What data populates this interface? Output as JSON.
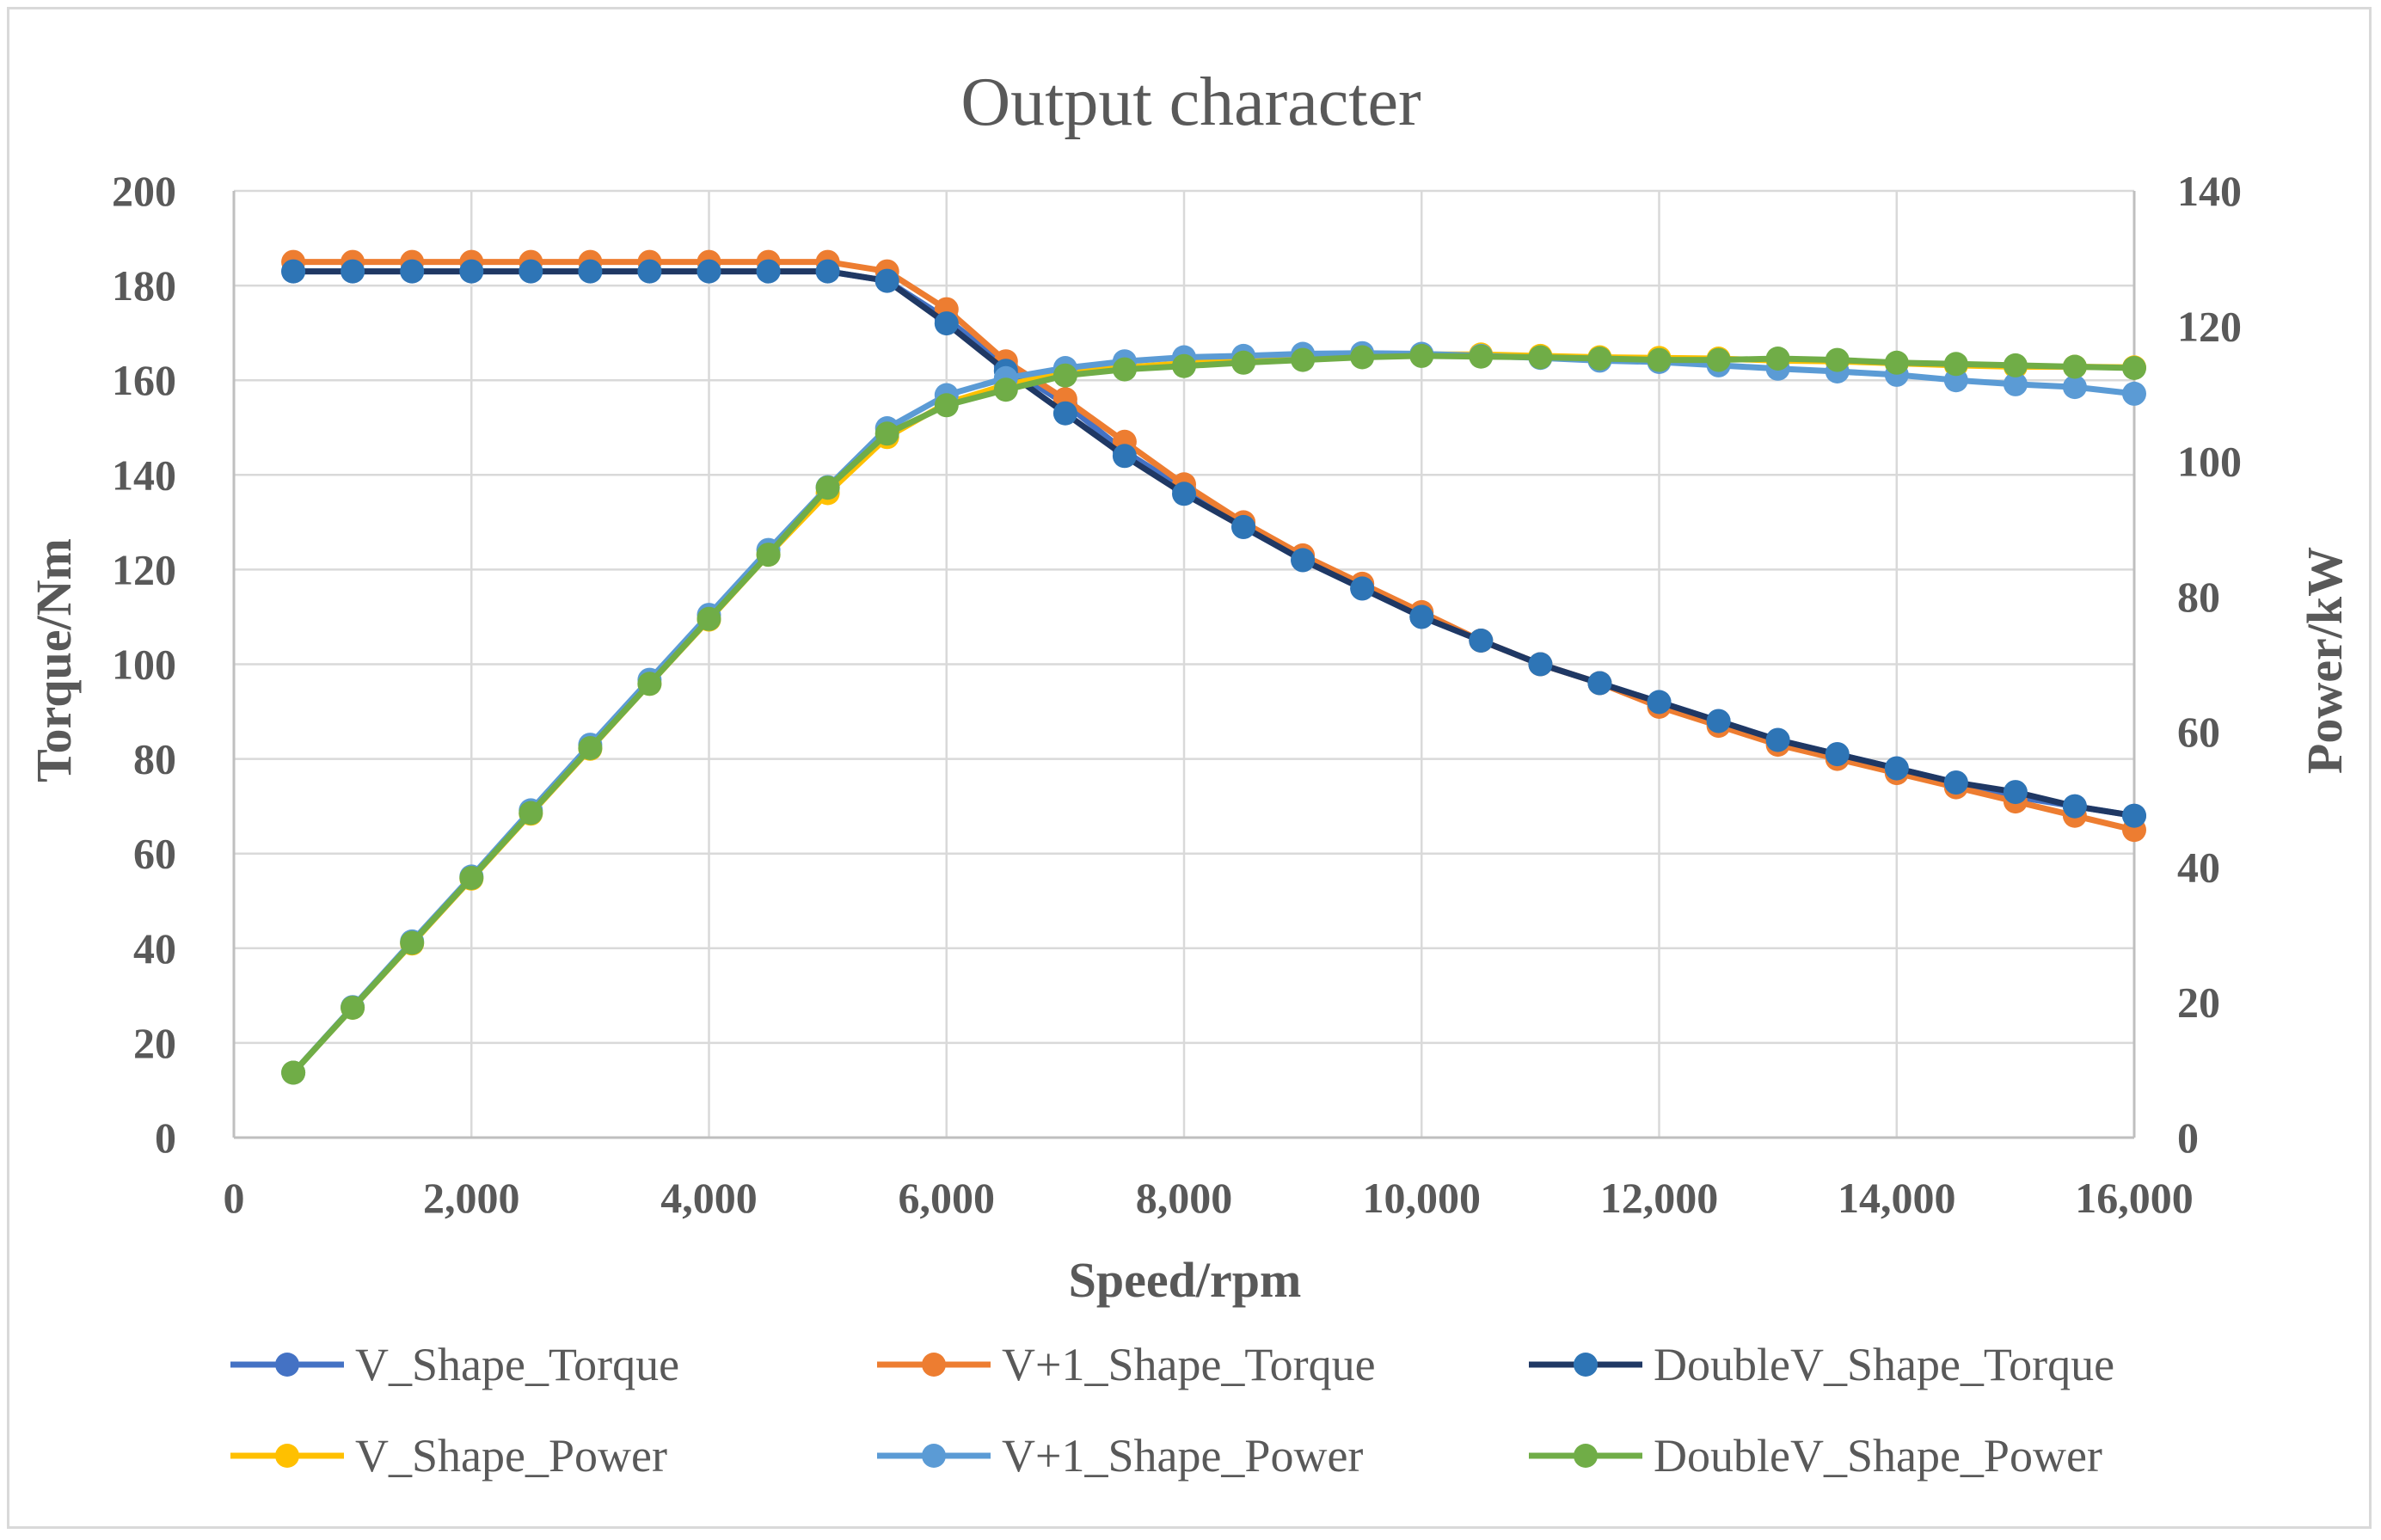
{
  "chart_data": {
    "type": "line",
    "title": "Output character",
    "xlabel": "Speed/rpm",
    "ylabel": "Torque/Nm",
    "y2label": "Power/kW",
    "xlim": [
      0,
      16000
    ],
    "ylim": [
      0,
      200
    ],
    "y2lim": [
      0,
      140
    ],
    "x_ticks": [
      "0",
      "2,000",
      "4,000",
      "6,000",
      "8,000",
      "10,000",
      "12,000",
      "14,000",
      "16,000"
    ],
    "y_ticks": [
      "0",
      "20",
      "40",
      "60",
      "80",
      "100",
      "120",
      "140",
      "160",
      "180",
      "200"
    ],
    "y2_ticks": [
      "0",
      "20",
      "40",
      "60",
      "80",
      "100",
      "120",
      "140"
    ],
    "grid": true,
    "legend_position": "bottom",
    "x": [
      500,
      1000,
      1500,
      2000,
      2500,
      3000,
      3500,
      4000,
      4500,
      5000,
      5500,
      6000,
      6500,
      7000,
      7500,
      8000,
      8500,
      9000,
      9500,
      10000,
      10500,
      11000,
      11500,
      12000,
      12500,
      13000,
      13500,
      14000,
      14500,
      15000,
      15500,
      16000
    ],
    "series": [
      {
        "name": "V_Shape_Torque",
        "axis": "left",
        "color": "#4472c4",
        "draw_order": 1,
        "values": [
          183,
          183,
          183,
          183,
          183,
          183,
          183,
          183,
          183,
          183,
          181,
          173,
          163,
          155,
          145,
          137,
          129,
          122,
          116,
          110,
          105,
          100,
          96,
          92,
          88,
          84,
          81,
          78,
          75,
          72,
          70,
          68
        ]
      },
      {
        "name": "V+1_Shape_Torque",
        "axis": "left",
        "color": "#ed7d31",
        "draw_order": 2,
        "values": [
          185,
          185,
          185,
          185,
          185,
          185,
          185,
          185,
          185,
          185,
          183,
          175,
          164,
          156,
          147,
          138,
          130,
          123,
          117,
          111,
          105,
          100,
          96,
          91,
          87,
          83,
          80,
          77,
          74,
          71,
          68,
          65
        ]
      },
      {
        "name": "DoubleV_Shape_Torque",
        "axis": "left",
        "color": "#1f3864",
        "marker": "#2e75b6",
        "draw_order": 3,
        "values": [
          183,
          183,
          183,
          183,
          183,
          183,
          183,
          183,
          183,
          183,
          181,
          172,
          162,
          153,
          144,
          136,
          129,
          122,
          116,
          110,
          105,
          100,
          96,
          92,
          88,
          84,
          81,
          78,
          75,
          73,
          70,
          68
        ]
      },
      {
        "name": "V_Shape_Power",
        "axis": "right",
        "color": "#ffc000",
        "draw_order": 4,
        "values": [
          9.6,
          19.2,
          28.7,
          38.3,
          47.9,
          57.5,
          67.1,
          76.6,
          86.2,
          95.3,
          103.6,
          108.6,
          111.3,
          113.1,
          113.9,
          114.5,
          115.0,
          115.3,
          115.6,
          115.8,
          115.8,
          115.6,
          115.4,
          115.3,
          115.2,
          114.9,
          114.8,
          114.5,
          114.2,
          114.0,
          114.0,
          113.9
        ]
      },
      {
        "name": "V+1_Shape_Power",
        "axis": "right",
        "color": "#5b9bd5",
        "draw_order": 5,
        "values": [
          9.6,
          19.3,
          29.0,
          38.6,
          48.4,
          58.1,
          67.7,
          77.3,
          86.9,
          96.2,
          104.9,
          109.8,
          112.3,
          113.8,
          114.8,
          115.4,
          115.6,
          115.9,
          116.0,
          115.9,
          115.6,
          115.3,
          114.9,
          114.7,
          114.2,
          113.7,
          113.3,
          112.8,
          112.0,
          111.4,
          111.0,
          110.0
        ]
      },
      {
        "name": "DoubleV_Shape_Power",
        "axis": "right",
        "color": "#70ad47",
        "draw_order": 6,
        "values": [
          9.6,
          19.2,
          28.8,
          38.4,
          48.0,
          57.6,
          67.1,
          76.7,
          86.2,
          96.1,
          104.1,
          108.3,
          110.6,
          112.7,
          113.6,
          114.1,
          114.6,
          115.0,
          115.4,
          115.6,
          115.5,
          115.4,
          115.2,
          115.0,
          115.0,
          115.2,
          115.0,
          114.6,
          114.4,
          114.2,
          114.0,
          113.8
        ]
      }
    ]
  }
}
